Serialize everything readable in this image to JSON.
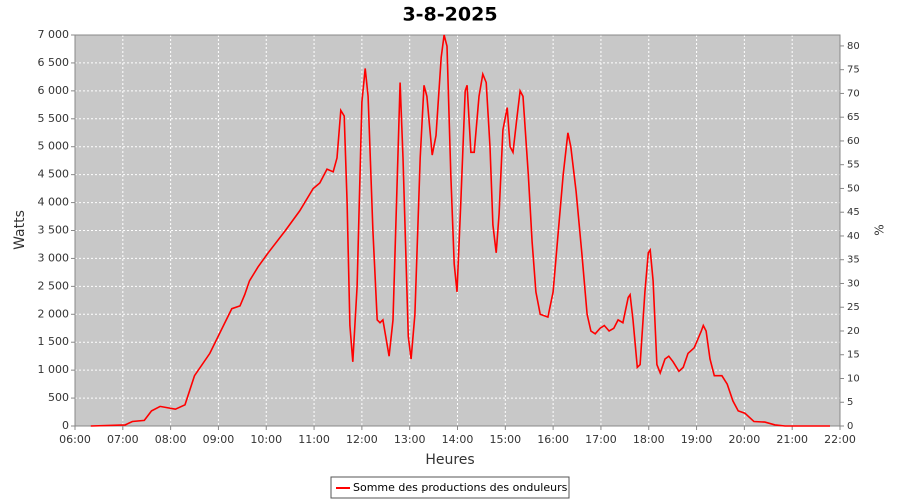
{
  "chart_data": {
    "type": "line",
    "title": "3-8-2025",
    "x_label": "Heures",
    "y_label": "Watts",
    "y2_label": "%",
    "x": [
      6.33,
      7.05,
      7.2,
      7.45,
      7.6,
      7.78,
      8.1,
      8.3,
      8.5,
      8.82,
      9.28,
      9.45,
      9.55,
      9.65,
      9.83,
      10.04,
      10.4,
      10.7,
      10.98,
      11.12,
      11.27,
      11.4,
      11.48,
      11.56,
      11.63,
      11.69,
      11.75,
      11.81,
      11.9,
      12.0,
      12.07,
      12.13,
      12.23,
      12.32,
      12.38,
      12.44,
      12.57,
      12.65,
      12.76,
      12.8,
      12.86,
      12.97,
      13.03,
      13.11,
      13.22,
      13.3,
      13.36,
      13.47,
      13.55,
      13.66,
      13.72,
      13.78,
      13.86,
      13.93,
      13.99,
      14.07,
      14.16,
      14.2,
      14.28,
      14.35,
      14.45,
      14.53,
      14.6,
      14.68,
      14.74,
      14.81,
      14.87,
      14.95,
      15.04,
      15.1,
      15.16,
      15.24,
      15.31,
      15.37,
      15.48,
      15.56,
      15.64,
      15.73,
      15.89,
      16.0,
      16.1,
      16.21,
      16.31,
      16.37,
      16.48,
      16.6,
      16.71,
      16.79,
      16.88,
      16.98,
      17.07,
      17.17,
      17.27,
      17.36,
      17.46,
      17.57,
      17.61,
      17.67,
      17.76,
      17.82,
      17.92,
      17.99,
      18.03,
      18.09,
      18.17,
      18.24,
      18.34,
      18.42,
      18.51,
      18.63,
      18.72,
      18.82,
      18.95,
      19.1,
      19.14,
      19.2,
      19.28,
      19.37,
      19.53,
      19.64,
      19.76,
      19.87,
      20.01,
      20.2,
      20.43,
      20.64,
      20.85,
      21.79
    ],
    "series": [
      {
        "name": "Somme des productions des onduleurs",
        "color": "#ff0000",
        "values": [
          0,
          20,
          80,
          100,
          270,
          350,
          300,
          380,
          900,
          1300,
          2100,
          2150,
          2350,
          2600,
          2850,
          3100,
          3500,
          3850,
          4250,
          4350,
          4600,
          4550,
          4800,
          5650,
          5550,
          4000,
          1800,
          1150,
          2500,
          5800,
          6400,
          5900,
          3500,
          1900,
          1850,
          1900,
          1250,
          1900,
          5000,
          6150,
          4800,
          1600,
          1200,
          2000,
          4800,
          6100,
          5900,
          4850,
          5200,
          6600,
          7000,
          6800,
          4500,
          2900,
          2400,
          4000,
          6000,
          6100,
          4900,
          4900,
          5900,
          6300,
          6150,
          5000,
          3600,
          3100,
          3800,
          5300,
          5700,
          5000,
          4900,
          5500,
          6000,
          5900,
          4500,
          3300,
          2400,
          2000,
          1950,
          2400,
          3400,
          4500,
          5250,
          5000,
          4200,
          3100,
          2000,
          1700,
          1650,
          1750,
          1800,
          1700,
          1750,
          1900,
          1850,
          2300,
          2350,
          1900,
          1050,
          1100,
          2400,
          3100,
          3150,
          2600,
          1100,
          950,
          1200,
          1250,
          1150,
          980,
          1050,
          1300,
          1400,
          1700,
          1800,
          1700,
          1200,
          900,
          900,
          750,
          450,
          270,
          230,
          80,
          70,
          20,
          0,
          0
        ]
      }
    ],
    "xlim": [
      6,
      22
    ],
    "xticks": [
      {
        "value": 6,
        "label": "06:00"
      },
      {
        "value": 7,
        "label": "07:00"
      },
      {
        "value": 8,
        "label": "08:00"
      },
      {
        "value": 9,
        "label": "09:00"
      },
      {
        "value": 10,
        "label": "10:00"
      },
      {
        "value": 11,
        "label": "11:00"
      },
      {
        "value": 12,
        "label": "12:00"
      },
      {
        "value": 13,
        "label": "13:00"
      },
      {
        "value": 14,
        "label": "14:00"
      },
      {
        "value": 15,
        "label": "15:00"
      },
      {
        "value": 16,
        "label": "16:00"
      },
      {
        "value": 17,
        "label": "17:00"
      },
      {
        "value": 18,
        "label": "18:00"
      },
      {
        "value": 19,
        "label": "19:00"
      },
      {
        "value": 20,
        "label": "20:00"
      },
      {
        "value": 21,
        "label": "21:00"
      },
      {
        "value": 22,
        "label": "22:00"
      }
    ],
    "ylim": [
      0,
      7000
    ],
    "yticks": [
      0,
      500,
      {
        "value": 1000,
        "label": "1 000"
      },
      {
        "value": 1500,
        "label": "1 500"
      },
      {
        "value": 2000,
        "label": "2 000"
      },
      {
        "value": 2500,
        "label": "2 500"
      },
      {
        "value": 3000,
        "label": "3 000"
      },
      {
        "value": 3500,
        "label": "3 500"
      },
      {
        "value": 4000,
        "label": "4 000"
      },
      {
        "value": 4500,
        "label": "4 500"
      },
      {
        "value": 5000,
        "label": "5 000"
      },
      {
        "value": 5500,
        "label": "5 500"
      },
      {
        "value": 6000,
        "label": "6 000"
      },
      {
        "value": 6500,
        "label": "6 500"
      },
      {
        "value": 7000,
        "label": "7 000"
      }
    ],
    "y2lim": [
      0,
      82.3
    ],
    "y2ticks": [
      0,
      5,
      10,
      15,
      20,
      25,
      30,
      35,
      40,
      45,
      50,
      55,
      60,
      65,
      70,
      75,
      80
    ],
    "grid": true,
    "legend": "bottom"
  }
}
